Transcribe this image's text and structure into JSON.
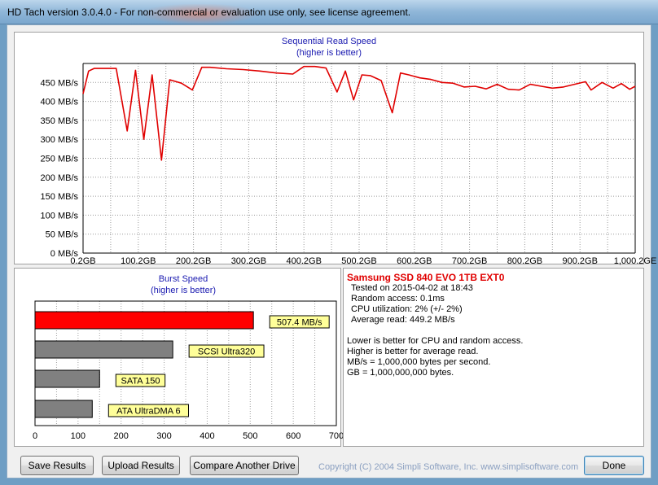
{
  "window": {
    "title": "HD Tach version 3.0.4.0  - For non-commercial or evaluation use only, see license agreement."
  },
  "chart_data": [
    {
      "type": "line",
      "title": "Sequential Read Speed",
      "subtitle": "(higher is better)",
      "xlabel": "",
      "ylabel": "",
      "x_unit": "GB",
      "y_unit": "MB/s",
      "ylim": [
        0,
        500
      ],
      "xlim": [
        0.2,
        1000.2
      ],
      "grid": true,
      "y_ticks": [
        "0 MB/s",
        "50 MB/s",
        "100 MB/s",
        "150 MB/s",
        "200 MB/s",
        "250 MB/s",
        "300 MB/s",
        "350 MB/s",
        "400 MB/s",
        "450 MB/s"
      ],
      "x_ticks": [
        "0.2GB",
        "100.2GB",
        "200.2GB",
        "300.2GB",
        "400.2GB",
        "500.2GB",
        "600.2GB",
        "700.2GB",
        "800.2GB",
        "900.2GB",
        "1,000.2GE"
      ],
      "series": [
        {
          "color": "#e00000",
          "x": [
            0,
            10,
            20,
            35,
            60,
            80,
            95,
            110,
            125,
            142,
            157,
            162,
            178,
            198,
            215,
            230,
            260,
            290,
            320,
            350,
            380,
            400,
            420,
            440,
            460,
            475,
            490,
            505,
            520,
            540,
            560,
            575,
            590,
            610,
            630,
            650,
            670,
            690,
            710,
            730,
            750,
            770,
            790,
            810,
            830,
            850,
            870,
            890,
            910,
            920,
            940,
            960,
            975,
            990,
            1000
          ],
          "y": [
            420,
            480,
            487,
            487,
            487,
            322,
            482,
            300,
            470,
            245,
            457,
            455,
            448,
            430,
            490,
            490,
            486,
            484,
            480,
            475,
            472,
            492,
            492,
            488,
            425,
            480,
            404,
            470,
            468,
            455,
            370,
            475,
            470,
            462,
            458,
            450,
            448,
            438,
            440,
            433,
            445,
            432,
            430,
            445,
            440,
            435,
            438,
            445,
            452,
            430,
            450,
            435,
            447,
            432,
            440
          ]
        }
      ]
    },
    {
      "type": "bar",
      "title": "Burst Speed",
      "subtitle": "(higher is better)",
      "xlabel": "",
      "ylabel": "",
      "xlim": [
        0,
        700
      ],
      "x_ticks": [
        "0",
        "100",
        "200",
        "300",
        "400",
        "500",
        "600",
        "700"
      ],
      "categories": [
        "507.4 MB/s",
        "SCSI Ultra320",
        "SATA 150",
        "ATA UltraDMA 6"
      ],
      "values": [
        507.4,
        320,
        150,
        133
      ],
      "colors": [
        "#ff0000",
        "#808080",
        "#808080",
        "#808080"
      ]
    }
  ],
  "info": {
    "drive": "Samsung SSD 840 EVO 1TB EXT0",
    "lines": [
      "Tested on 2015-04-02 at 18:43",
      "Random access: 0.1ms",
      "CPU utilization: 2% (+/- 2%)",
      "Average read: 449.2 MB/s"
    ],
    "notes": [
      "Lower is better for CPU and random access.",
      "Higher is better for average read.",
      "MB/s = 1,000,000 bytes per second.",
      "GB = 1,000,000,000 bytes."
    ]
  },
  "buttons": {
    "save": "Save Results",
    "upload": "Upload Results",
    "compare": "Compare Another Drive",
    "done": "Done"
  },
  "copyright": "Copyright (C) 2004 Simpli Software, Inc. www.simplisoftware.com"
}
